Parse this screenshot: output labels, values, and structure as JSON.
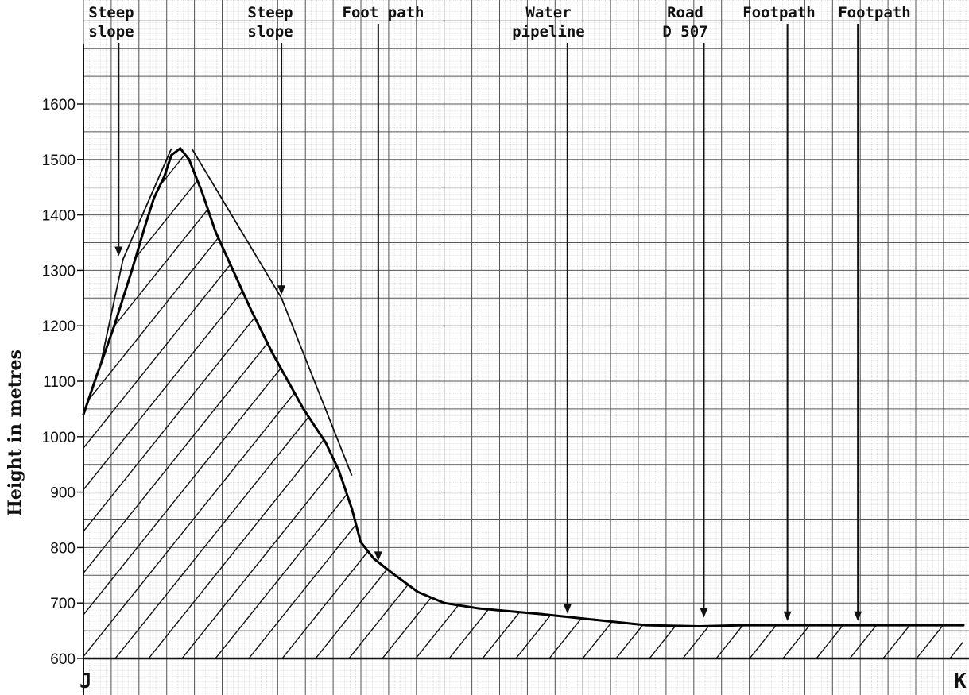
{
  "chart_data": {
    "type": "area",
    "ylabel": "Height in metres",
    "ylim": [
      600,
      1700
    ],
    "yticks": [
      600,
      700,
      800,
      900,
      1000,
      1100,
      1200,
      1300,
      1400,
      1500,
      1600
    ],
    "x_start_label": "J",
    "x_end_label": "K",
    "fill": "diagonal hatching",
    "grid": true,
    "profile": [
      {
        "x": 0.0,
        "y": 1040
      },
      {
        "x": 1.5,
        "y": 1110
      },
      {
        "x": 3.5,
        "y": 1200
      },
      {
        "x": 5.5,
        "y": 1300
      },
      {
        "x": 7.0,
        "y": 1380
      },
      {
        "x": 8.0,
        "y": 1430
      },
      {
        "x": 9.2,
        "y": 1470
      },
      {
        "x": 10.0,
        "y": 1508
      },
      {
        "x": 11.0,
        "y": 1520
      },
      {
        "x": 12.0,
        "y": 1500
      },
      {
        "x": 13.5,
        "y": 1440
      },
      {
        "x": 15.0,
        "y": 1370
      },
      {
        "x": 17.0,
        "y": 1300
      },
      {
        "x": 19.0,
        "y": 1230
      },
      {
        "x": 21.5,
        "y": 1150
      },
      {
        "x": 25.0,
        "y": 1050
      },
      {
        "x": 27.5,
        "y": 990
      },
      {
        "x": 29.0,
        "y": 940
      },
      {
        "x": 30.5,
        "y": 870
      },
      {
        "x": 31.5,
        "y": 810
      },
      {
        "x": 33.0,
        "y": 780
      },
      {
        "x": 35.0,
        "y": 755
      },
      {
        "x": 38.0,
        "y": 720
      },
      {
        "x": 41.0,
        "y": 700
      },
      {
        "x": 45.0,
        "y": 690
      },
      {
        "x": 52.0,
        "y": 680
      },
      {
        "x": 58.0,
        "y": 670
      },
      {
        "x": 64.0,
        "y": 660
      },
      {
        "x": 70.0,
        "y": 658
      },
      {
        "x": 75.0,
        "y": 660
      },
      {
        "x": 79.0,
        "y": 660
      },
      {
        "x": 85.0,
        "y": 660
      },
      {
        "x": 90.0,
        "y": 660
      },
      {
        "x": 100.0,
        "y": 660
      }
    ],
    "annotations": [
      {
        "label": [
          "Steep",
          "slope"
        ],
        "x": 4.0,
        "y": 1320,
        "kind": "steep"
      },
      {
        "label": [
          "Steep",
          "slope"
        ],
        "x": 22.5,
        "y": 1250,
        "kind": "steep"
      },
      {
        "label": [
          "Foot path"
        ],
        "x": 33.5,
        "y": 770,
        "kind": "point"
      },
      {
        "label": [
          "Water",
          "pipeline"
        ],
        "x": 55.0,
        "y": 675,
        "kind": "point"
      },
      {
        "label": [
          "Road",
          "D 507"
        ],
        "x": 70.5,
        "y": 668,
        "kind": "road"
      },
      {
        "label": [
          "Footpath"
        ],
        "x": 80.0,
        "y": 662,
        "kind": "point"
      },
      {
        "label": [
          "Footpath"
        ],
        "x": 88.0,
        "y": 662,
        "kind": "point"
      }
    ]
  }
}
